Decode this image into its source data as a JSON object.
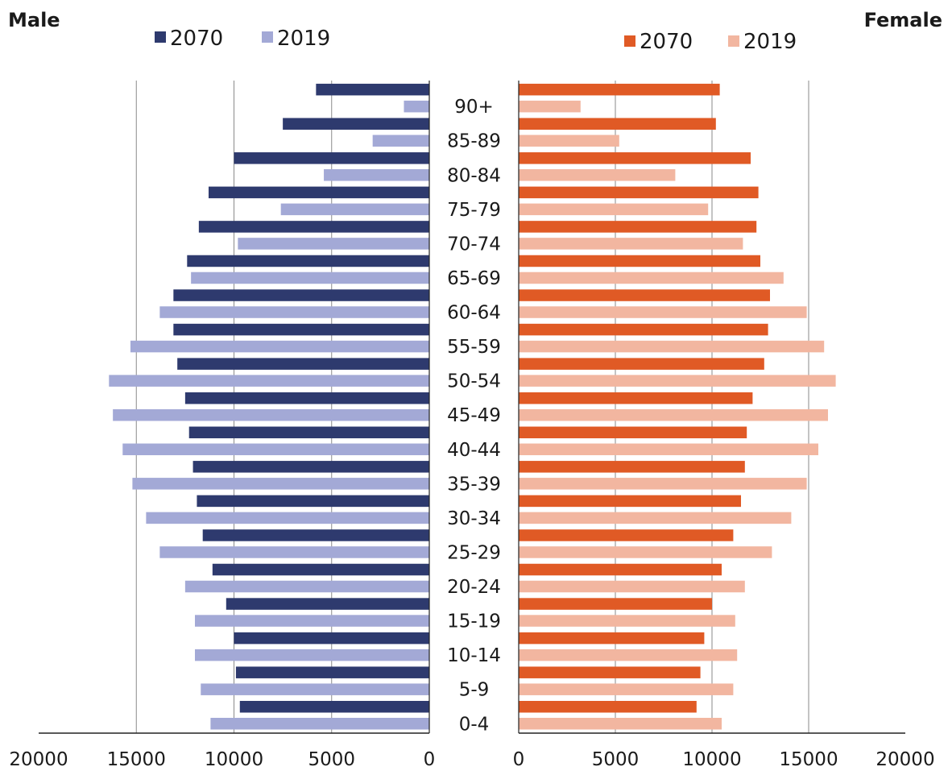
{
  "chart_data": {
    "type": "bar",
    "orientation": "horizontal",
    "subtype": "population-pyramid",
    "categories": [
      "0-4",
      "5-9",
      "10-14",
      "15-19",
      "20-24",
      "25-29",
      "30-34",
      "35-39",
      "40-44",
      "45-49",
      "50-54",
      "55-59",
      "60-64",
      "65-69",
      "70-74",
      "75-79",
      "80-84",
      "85-89",
      "90+"
    ],
    "panels": [
      {
        "title": "Male",
        "side": "left",
        "xlim": [
          0,
          20000
        ],
        "ticks": [
          20000,
          15000,
          10000,
          5000,
          0
        ],
        "tick_labels": [
          "20000",
          "15000",
          "10000",
          "5000",
          "0"
        ],
        "series": [
          {
            "name": "2070",
            "color": "#2e3a6e",
            "values": [
              9700,
              9900,
              10000,
              10400,
              11100,
              11600,
              11900,
              12100,
              12300,
              12500,
              12900,
              13100,
              13100,
              12400,
              11800,
              11300,
              10000,
              7500,
              5800
            ]
          },
          {
            "name": "2019",
            "color": "#a3a9d6",
            "values": [
              11200,
              11700,
              12000,
              12000,
              12500,
              13800,
              14500,
              15200,
              15700,
              16200,
              16400,
              15300,
              13800,
              12200,
              9800,
              7600,
              5400,
              2900,
              1300
            ]
          }
        ]
      },
      {
        "title": "Female",
        "side": "right",
        "xlim": [
          0,
          20000
        ],
        "ticks": [
          0,
          5000,
          10000,
          15000,
          20000
        ],
        "tick_labels": [
          "0",
          "5000",
          "10000",
          "15000",
          "20000"
        ],
        "series": [
          {
            "name": "2070",
            "color": "#e05a25",
            "values": [
              9200,
              9400,
              9600,
              10000,
              10500,
              11100,
              11500,
              11700,
              11800,
              12100,
              12700,
              12900,
              13000,
              12500,
              12300,
              12400,
              12000,
              10200,
              10400
            ]
          },
          {
            "name": "2019",
            "color": "#f2b6a0",
            "values": [
              10500,
              11100,
              11300,
              11200,
              11700,
              13100,
              14100,
              14900,
              15500,
              16000,
              16400,
              15800,
              14900,
              13700,
              11600,
              9800,
              8100,
              5200,
              3200
            ]
          }
        ]
      }
    ],
    "grid": "vertical",
    "legend": "top"
  }
}
